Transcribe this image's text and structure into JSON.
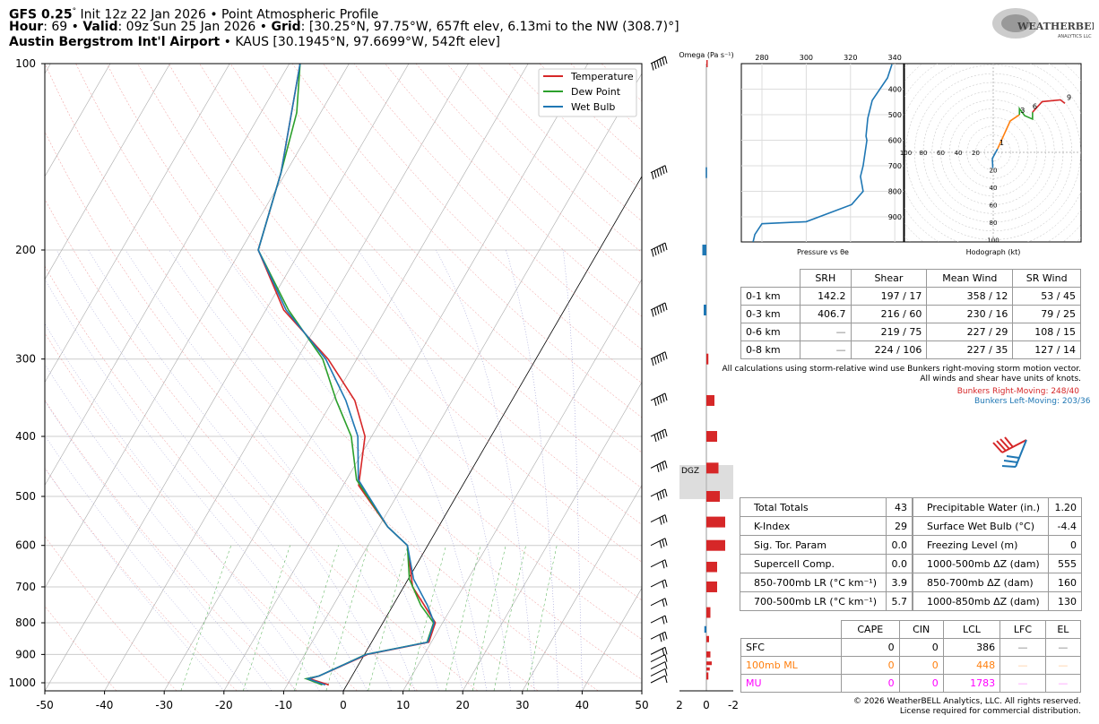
{
  "header": {
    "line1_bold": "GFS 0.25",
    "line1_deg": "°",
    "line1_rest": " Init 12z 22 Jan 2026 • Point Atmospheric Profile",
    "hour_label": "Hour",
    "hour_value": ": 69 • ",
    "valid_label": "Valid",
    "valid_value": ": 09z Sun 25 Jan 2026 • ",
    "grid_label": "Grid",
    "grid_value": ": [30.25°N, 97.75°W, 657ft elev, 6.13mi to the NW (308.7)°]",
    "station_bold": "Austin Bergstrom Int'l Airport",
    "station_rest": " • KAUS [30.1945°N, 97.6699°W, 542ft elev]"
  },
  "logo": {
    "text": "WEATHERBELL",
    "sub": "ANALYTICS LLC"
  },
  "colors": {
    "temperature": "#d62728",
    "dewpoint": "#2ca02c",
    "wetbulb": "#1f77b4",
    "omega_up": "#d62728",
    "omega_down": "#1f77b4",
    "orange": "#ff7f0e",
    "magenta": "#ff00ff"
  },
  "chart_data": [
    {
      "type": "line",
      "title": "Skew-T Log-P",
      "xlabel": "",
      "ylabel": "",
      "xlim": [
        -50,
        50
      ],
      "ylim": [
        1030,
        100
      ],
      "x_ticks": [
        "-50",
        "-40",
        "-30",
        "-20",
        "-10",
        "0",
        "10",
        "20",
        "30",
        "40",
        "50"
      ],
      "y_ticks": [
        "100",
        "200",
        "300",
        "400",
        "500",
        "600",
        "700",
        "800",
        "900",
        "1000"
      ],
      "legend": {
        "placement": "top-right",
        "entries": [
          "Temperature",
          "Dew Point",
          "Wet Bulb"
        ]
      },
      "series": [
        {
          "name": "Temperature",
          "p": [
            1008,
            985,
            975,
            900,
            860,
            800,
            700,
            600,
            560,
            480,
            400,
            350,
            300,
            250,
            200,
            150,
            100
          ],
          "t": [
            -3.0,
            -6.8,
            -5.5,
            0.5,
            9.6,
            8.8,
            1.5,
            -3.4,
            -8.5,
            -17.4,
            -21.1,
            -26.3,
            -34.8,
            -47,
            -57.1,
            -60.8,
            -68.2
          ]
        },
        {
          "name": "Dew Point",
          "p": [
            1008,
            985,
            975,
            900,
            860,
            800,
            750,
            680,
            600,
            560,
            470,
            400,
            350,
            300,
            250,
            200,
            150,
            120,
            100
          ],
          "t": [
            -4.1,
            -7.4,
            -5.5,
            0.2,
            9.3,
            8.5,
            4.7,
            0.2,
            -3.4,
            -8.5,
            -18.3,
            -23.4,
            -29.4,
            -35.7,
            -46.2,
            -57.1,
            -60.8,
            -64,
            -68.2
          ]
        },
        {
          "name": "Wet Bulb",
          "p": [
            1008,
            985,
            975,
            900,
            860,
            800,
            750,
            680,
            600,
            560,
            470,
            400,
            350,
            300,
            250,
            200,
            150,
            100
          ],
          "t": [
            -3.6,
            -7.1,
            -5.5,
            0.3,
            9.4,
            8.6,
            5.8,
            0.9,
            -3.4,
            -8.5,
            -18.0,
            -22.3,
            -27.8,
            -35.2,
            -46.6,
            -57.1,
            -60.8,
            -68.2
          ]
        }
      ]
    },
    {
      "type": "bar",
      "title": "Omega (Pa s⁻¹)",
      "x_ticks": [
        "2",
        "0",
        "-2"
      ],
      "xlim": [
        2,
        -2
      ],
      "p": [
        100,
        150,
        200,
        250,
        300,
        350,
        400,
        450,
        500,
        550,
        600,
        650,
        700,
        770,
        820,
        850,
        900,
        930,
        950,
        975
      ],
      "values": [
        -0.1,
        0.05,
        0.3,
        0.2,
        -0.15,
        -0.6,
        -0.8,
        -0.9,
        -1.0,
        -1.4,
        -1.4,
        -0.8,
        -0.8,
        -0.3,
        0.15,
        -0.2,
        -0.3,
        -0.4,
        -0.25,
        -0.15
      ],
      "annotation": "DGZ",
      "dgz_p": [
        445,
        505
      ]
    },
    {
      "type": "line",
      "title": "Pressure vs θe",
      "xlabel": "Pressure vs θe",
      "x_ticks": [
        "280",
        "300",
        "320",
        "340"
      ],
      "y_ticks": [
        "400",
        "500",
        "600",
        "700",
        "800",
        "900"
      ],
      "xlim": [
        271,
        340
      ],
      "ylim": [
        998,
        300
      ],
      "p": [
        303,
        356,
        444,
        514,
        584,
        600,
        700,
        742,
        800,
        852,
        919,
        927,
        969,
        998
      ],
      "theta_e": [
        338.7,
        336.7,
        329.8,
        327.8,
        327,
        327.4,
        325.7,
        324.5,
        325.7,
        320.5,
        300,
        280,
        276.8,
        276
      ]
    },
    {
      "type": "line",
      "title": "Hodograph (kt)",
      "xlabel": "Hodograph (kt)",
      "ring_labels": [
        "20",
        "40",
        "60",
        "80",
        "100"
      ],
      "left_labels": [
        "20",
        "40",
        "60",
        "80",
        "100"
      ],
      "segments": [
        {
          "name": "0-1 km",
          "color": "#1f77b4",
          "u": [
            -0.5,
            -1,
            5
          ],
          "v": [
            -18,
            -7,
            4
          ]
        },
        {
          "name": "1-3 km",
          "color": "#ff7f0e",
          "u": [
            5,
            19.5,
            30
          ],
          "v": [
            4,
            36,
            43
          ]
        },
        {
          "name": "3-6 km",
          "color": "#2ca02c",
          "u": [
            30,
            30,
            36,
            45,
            45
          ],
          "v": [
            43,
            50,
            42,
            38,
            46
          ]
        },
        {
          "name": "6-9 km",
          "color": "#d62728",
          "u": [
            45,
            56,
            77,
            82
          ],
          "v": [
            46,
            58,
            60,
            56
          ]
        }
      ],
      "height_labels": [
        {
          "t": "1",
          "u": 5,
          "v": 8
        },
        {
          "t": "3",
          "u": 29,
          "v": 45
        },
        {
          "t": "6",
          "u": 43,
          "v": 50
        },
        {
          "t": "9",
          "u": 82,
          "v": 60
        }
      ]
    }
  ],
  "wind_table": {
    "headers": [
      "SRH",
      "Shear",
      "Mean Wind",
      "SR Wind"
    ],
    "rows": [
      [
        "0-1 km",
        "142.2",
        "197 / 17",
        "358 / 12",
        "53 / 45"
      ],
      [
        "0-3 km",
        "406.7",
        "216 / 60",
        "230 / 16",
        "79 / 25"
      ],
      [
        "0-6 km",
        "—",
        "219 / 75",
        "227 / 29",
        "108 / 15"
      ],
      [
        "0-8 km",
        "—",
        "224 / 106",
        "227 / 35",
        "127 / 14"
      ]
    ],
    "note1": "All calculations using storm-relative wind use Bunkers right-moving storm motion vector.",
    "note2": "All winds and shear have units of knots.",
    "bunkers_rm": "Bunkers Right-Moving: 248/40",
    "bunkers_lm": "Bunkers Left-Moving: 203/36"
  },
  "indices": [
    [
      "Total Totals",
      "43",
      "Precipitable Water (in.)",
      "1.20"
    ],
    [
      "K-Index",
      "29",
      "Surface Wet Bulb (°C)",
      "-4.4"
    ],
    [
      "Sig. Tor. Param",
      "0.0",
      "Freezing Level (m)",
      "0"
    ],
    [
      "Supercell Comp.",
      "0.0",
      "1000-500mb ΔZ (dam)",
      "555"
    ],
    [
      "850-700mb LR (°C km⁻¹)",
      "3.9",
      "850-700mb ΔZ (dam)",
      "160"
    ],
    [
      "700-500mb LR (°C km⁻¹)",
      "5.7",
      "1000-850mb ΔZ (dam)",
      "130"
    ]
  ],
  "parcel_table": {
    "headers": [
      "CAPE",
      "CIN",
      "LCL",
      "LFC",
      "EL"
    ],
    "rows": [
      [
        "SFC",
        "0",
        "0",
        "386",
        "—",
        "—"
      ],
      [
        "100mb ML",
        "0",
        "0",
        "448",
        "—",
        "—"
      ],
      [
        "MU",
        "0",
        "0",
        "1783",
        "—",
        "—"
      ]
    ]
  },
  "footer": {
    "line1": "© 2026 WeatherBELL Analytics, LLC. All rights reserved.",
    "line2": "License required for commercial distribution."
  },
  "winds": {
    "p": [
      100,
      150,
      200,
      250,
      300,
      350,
      400,
      450,
      500,
      550,
      600,
      650,
      700,
      750,
      800,
      850,
      900,
      925,
      950,
      975,
      1000
    ],
    "spd": [
      60,
      65,
      75,
      70,
      55,
      50,
      45,
      40,
      35,
      30,
      25,
      20,
      15,
      15,
      20,
      25,
      15,
      10,
      10,
      10,
      10
    ]
  }
}
